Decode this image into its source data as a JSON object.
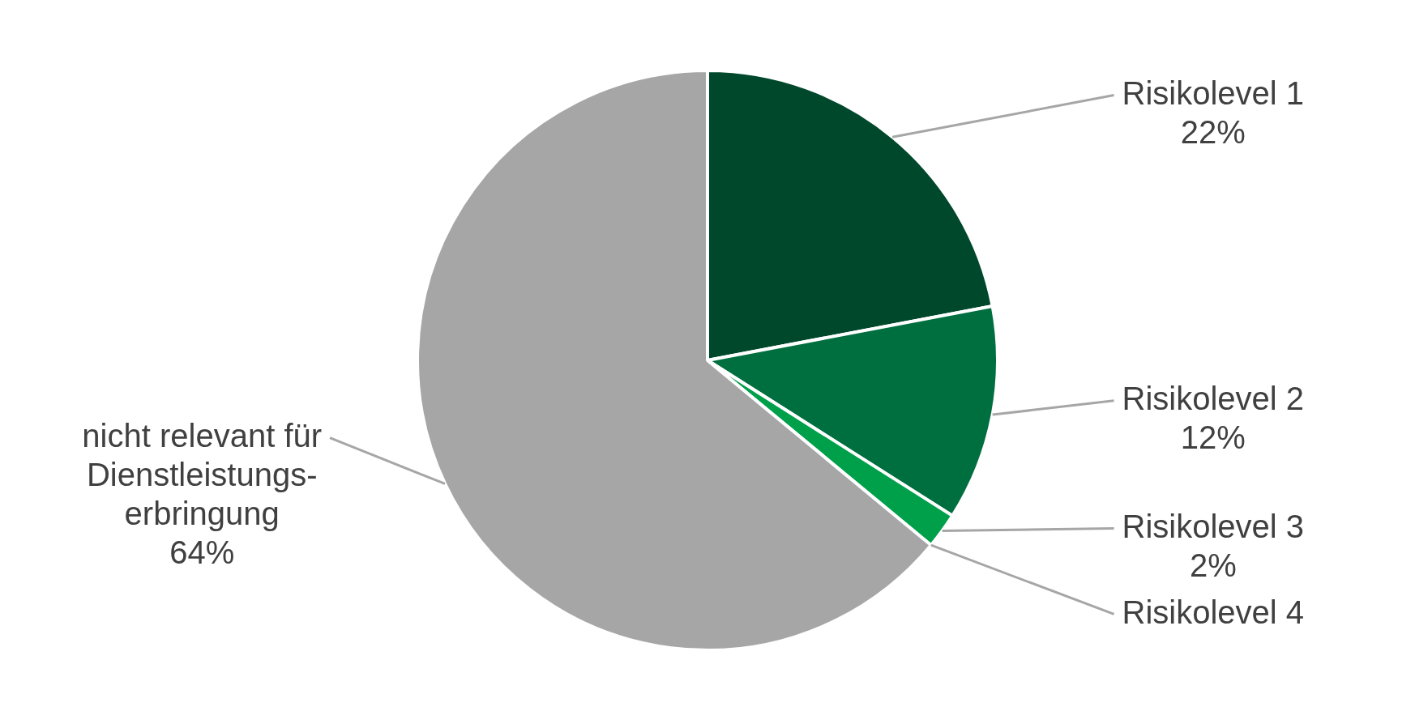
{
  "chart_data": {
    "type": "pie",
    "categories": [
      "Risikolevel 1",
      "Risikolevel 2",
      "Risikolevel 3",
      "Risikolevel 4",
      "nicht relevant für Dienstleistungs-erbringung"
    ],
    "values": [
      22,
      12,
      2,
      0,
      64
    ],
    "colors": [
      "#00482b",
      "#006f3f",
      "#00a04b",
      "#00c060",
      "#a6a6a6"
    ],
    "value_labels": [
      "22%",
      "12%",
      "2%",
      null,
      "64%"
    ],
    "legend": false
  }
}
